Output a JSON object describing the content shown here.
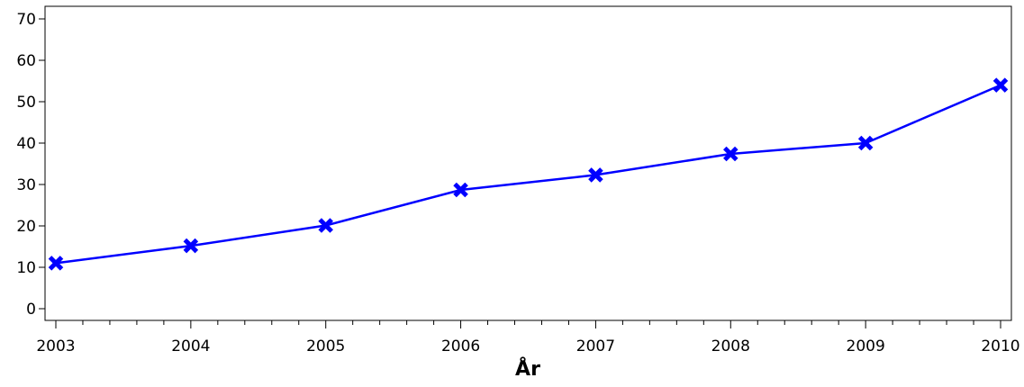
{
  "chart_data": {
    "type": "line",
    "title": "",
    "xlabel": "År",
    "ylabel": "",
    "x": [
      "2003",
      "2004",
      "2005",
      "2006",
      "2007",
      "2008",
      "2009",
      "2010"
    ],
    "series": [
      {
        "values": [
          11,
          15.2,
          20.1,
          28.7,
          32.3,
          37.4,
          40.0,
          54.0
        ],
        "color": "#0000ff",
        "marker": "x"
      }
    ],
    "ylim": [
      0,
      70
    ],
    "yticks": [
      "0",
      "10",
      "20",
      "30",
      "40",
      "50",
      "60",
      "70"
    ],
    "minor_x_ticks": 4,
    "grid": false,
    "legend": "none"
  }
}
